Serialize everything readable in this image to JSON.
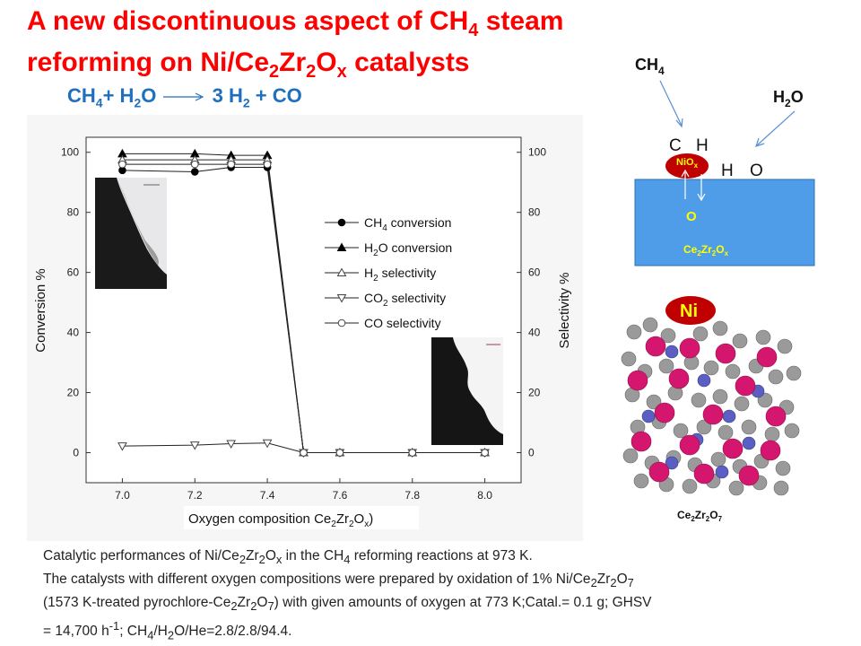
{
  "slide": {
    "title_line1": "A new discontinuous aspect of CH",
    "title_line1_sub": "4",
    "title_line1_end": " steam",
    "title_line2": "reforming on Ni/Ce",
    "title_line2_sub1": "2",
    "title_line2_mid1": "Zr",
    "title_line2_sub2": "2",
    "title_line2_mid2": "O",
    "title_line2_sub3": "x",
    "title_line2_end": " catalysts",
    "title_color": "#ff0000"
  },
  "reaction": {
    "lhs_a": "CH",
    "lhs_a_sub": "4",
    "lhs_b": "+ H",
    "lhs_b_sub": "2",
    "lhs_c": "O",
    "rhs_a": "3 H",
    "rhs_a_sub": "2",
    "rhs_b": " + CO",
    "color": "#1f6fbf"
  },
  "chart_data": {
    "type": "line",
    "x": [
      7.0,
      7.2,
      7.3,
      7.4,
      7.5,
      7.6,
      7.8,
      8.0
    ],
    "xlabel": "Oxygen composition Ce",
    "xlabel_sub1": "2",
    "xlabel_mid": "Zr",
    "xlabel_sub2": "2",
    "xlabel_mid2": "O",
    "xlabel_sub3": "x",
    "xlabel_end": ")",
    "ylabel_left": "Conversion %",
    "ylabel_right": "Selectivity %",
    "xlim": [
      6.9,
      8.1
    ],
    "ylim": [
      -10,
      105
    ],
    "xticks": [
      "7.0",
      "7.2",
      "7.4",
      "7.6",
      "7.8",
      "8.0"
    ],
    "yticks": [
      "0",
      "20",
      "40",
      "60",
      "80",
      "100"
    ],
    "legend_position": "right-center",
    "series": [
      {
        "name": "CH4 conversion",
        "label_main": "CH",
        "label_sub": "4",
        "label_end": " conversion",
        "marker": "circle-filled",
        "points": [
          [
            7.0,
            94
          ],
          [
            7.2,
            93.5
          ],
          [
            7.3,
            95
          ],
          [
            7.4,
            95
          ],
          [
            7.5,
            0
          ],
          [
            7.6,
            0
          ],
          [
            7.8,
            0
          ],
          [
            8.0,
            0
          ]
        ]
      },
      {
        "name": "H2O conversion",
        "label_main": "H",
        "label_sub": "2",
        "label_end": "O conversion",
        "marker": "triangle-filled",
        "points": [
          [
            7.0,
            99.5
          ],
          [
            7.2,
            99.5
          ],
          [
            7.3,
            99
          ],
          [
            7.4,
            99
          ],
          [
            7.5,
            0
          ],
          [
            7.6,
            0
          ],
          [
            7.8,
            0
          ],
          [
            8.0,
            0
          ]
        ]
      },
      {
        "name": "H2 selectivity",
        "label_main": "H",
        "label_sub": "2",
        "label_end": " selectivity",
        "marker": "triangle-open",
        "points": [
          [
            7.0,
            97.5
          ],
          [
            7.2,
            97.5
          ],
          [
            7.3,
            97.5
          ],
          [
            7.4,
            97.5
          ],
          [
            7.5,
            0
          ],
          [
            7.6,
            0
          ],
          [
            7.8,
            0
          ],
          [
            8.0,
            0
          ]
        ]
      },
      {
        "name": "CO2 selectivity",
        "label_main": "CO",
        "label_sub": "2",
        "label_end": " selectivity",
        "marker": "triangle-down-open",
        "points": [
          [
            7.0,
            2.2
          ],
          [
            7.2,
            2.5
          ],
          [
            7.3,
            3
          ],
          [
            7.4,
            3.2
          ],
          [
            7.5,
            0
          ],
          [
            7.6,
            0
          ],
          [
            7.8,
            0
          ],
          [
            8.0,
            0
          ]
        ]
      },
      {
        "name": "CO selectivity",
        "label_main": "CO selectivity",
        "label_sub": "",
        "label_end": "",
        "marker": "circle-open",
        "points": [
          [
            7.0,
            96
          ],
          [
            7.2,
            96
          ],
          [
            7.3,
            96
          ],
          [
            7.4,
            96
          ],
          [
            7.5,
            0
          ],
          [
            7.6,
            0
          ],
          [
            7.8,
            0
          ],
          [
            8.0,
            0
          ]
        ]
      }
    ]
  },
  "caption": {
    "line1_a": "Catalytic performances  of Ni/Ce",
    "line1_s1": "2",
    "line1_b": "Zr",
    "line1_s2": "2",
    "line1_c": "O",
    "line1_s3": "x",
    "line1_d": " in the CH",
    "line1_s4": "4",
    "line1_e": " reforming reactions at 973 K.",
    "line2_a": "The catalysts with different  oxygen compositions were prepared by oxidation of 1% Ni/Ce",
    "line2_s1": "2",
    "line2_b": "Zr",
    "line2_s2": "2",
    "line2_c": "O",
    "line2_s3": "7",
    "line3_a": "(1573 K-treated pyrochlore-Ce",
    "line3_s1": "2",
    "line3_b": "Zr",
    "line3_s2": "2",
    "line3_c": "O",
    "line3_s3": "7",
    "line3_d": ")  with given amounts of oxygen at 773 K;Catal.= 0.1 g; GHSV",
    "line4_a": "= 14,700 h",
    "line4_sup": "-1",
    "line4_b": ";  CH",
    "line4_s1": "4",
    "line4_c": "/H",
    "line4_s2": "2",
    "line4_d": "O/He=2.8/2.8/94.4."
  },
  "mechanism": {
    "ch4_label": "CH",
    "ch4_sub": "4",
    "h2o_label": "H",
    "h2o_sub": "2",
    "h2o_end": "O",
    "c_label": "C",
    "h_label_top": "H",
    "h_label_right": "H",
    "o_label_right": "O",
    "niox_label": "NiO",
    "niox_sub": "x",
    "o_label_support": "O",
    "support_label": "Ce",
    "support_sub1": "2",
    "support_mid": "Zr",
    "support_sub2": "2",
    "support_mid2": "O",
    "support_sub3": "x",
    "support_color": "#4f9de8",
    "niox_color": "#c00000"
  },
  "crystal": {
    "ni_label": "Ni",
    "structure_label": "Ce",
    "structure_sub1": "2",
    "structure_mid": "Zr",
    "structure_sub2": "2",
    "structure_mid2": "O",
    "structure_sub3": "7"
  }
}
